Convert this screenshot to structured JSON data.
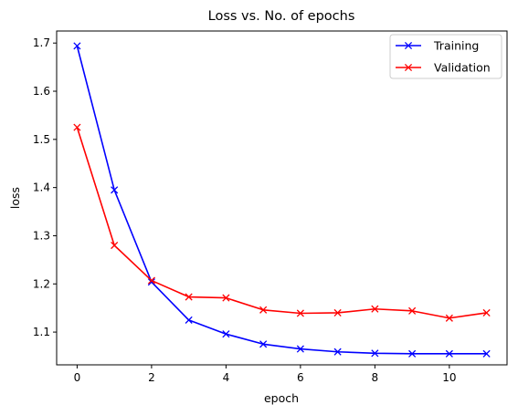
{
  "chart_data": {
    "type": "line",
    "title": "Loss vs. No. of epochs",
    "xlabel": "epoch",
    "ylabel": "loss",
    "x": [
      0,
      1,
      2,
      3,
      4,
      5,
      6,
      7,
      8,
      9,
      10,
      11
    ],
    "xlim": [
      -0.55,
      11.55
    ],
    "ylim": [
      1.032,
      1.725
    ],
    "xticks": [
      0,
      2,
      4,
      6,
      8,
      10
    ],
    "yticks": [
      1.1,
      1.2,
      1.3,
      1.4,
      1.5,
      1.6,
      1.7
    ],
    "xtick_labels": [
      "0",
      "2",
      "4",
      "6",
      "8",
      "10"
    ],
    "ytick_labels": [
      "1.1",
      "1.2",
      "1.3",
      "1.4",
      "1.5",
      "1.6",
      "1.7"
    ],
    "grid": false,
    "legend_position": "top-right",
    "series": [
      {
        "name": "Training",
        "color": "#0000ff",
        "marker": "x",
        "values": [
          1.694,
          1.395,
          1.204,
          1.125,
          1.096,
          1.075,
          1.065,
          1.059,
          1.056,
          1.055,
          1.055,
          1.055
        ]
      },
      {
        "name": "Validation",
        "color": "#ff0000",
        "marker": "x",
        "values": [
          1.525,
          1.28,
          1.207,
          1.173,
          1.171,
          1.146,
          1.139,
          1.14,
          1.148,
          1.144,
          1.129,
          1.14
        ]
      }
    ]
  }
}
